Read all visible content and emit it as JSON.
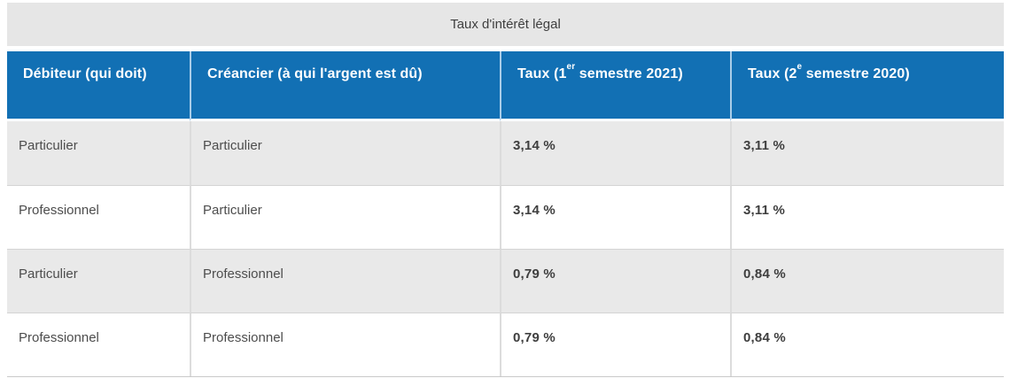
{
  "table": {
    "title": "Taux d'intérêt légal",
    "columns": [
      {
        "label": "Débiteur (qui doit)"
      },
      {
        "label": "Créancier (à qui l'argent est dû)"
      },
      {
        "label": "Taux (1",
        "sup": "er",
        "rest": " semestre 2021)"
      },
      {
        "label": "Taux (2",
        "sup": "e",
        "rest": " semestre 2020)"
      }
    ],
    "rows": [
      {
        "debiteur": "Particulier",
        "creancier": "Particulier",
        "taux_s1_2021": "3,14 %",
        "taux_s2_2020": "3,11 %"
      },
      {
        "debiteur": "Professionnel",
        "creancier": "Particulier",
        "taux_s1_2021": "3,14 %",
        "taux_s2_2020": "3,11 %"
      },
      {
        "debiteur": "Particulier",
        "creancier": "Professionnel",
        "taux_s1_2021": "0,79 %",
        "taux_s2_2020": "0,84 %"
      },
      {
        "debiteur": "Professionnel",
        "creancier": "Professionnel",
        "taux_s1_2021": "0,79 %",
        "taux_s2_2020": "0,84 %"
      }
    ],
    "colors": {
      "header_bg": "#1270b4",
      "header_text": "#ffffff",
      "header_divider": "#a9cde9",
      "caption_bg": "#e6e6e6",
      "row_alt_bg": "#e9e9e9",
      "row_bg": "#ffffff",
      "body_text": "#4d4d4d",
      "value_text": "#3e3e3e",
      "border": "#d4d4d4"
    }
  }
}
